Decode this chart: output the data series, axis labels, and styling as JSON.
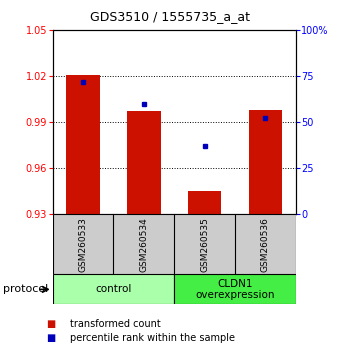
{
  "title": "GDS3510 / 1555735_a_at",
  "samples": [
    "GSM260533",
    "GSM260534",
    "GSM260535",
    "GSM260536"
  ],
  "red_values": [
    1.021,
    0.997,
    0.945,
    0.998
  ],
  "blue_values": [
    72,
    60,
    37,
    52
  ],
  "baseline": 0.93,
  "ylim_left": [
    0.93,
    1.05
  ],
  "ylim_right": [
    0,
    100
  ],
  "yticks_left": [
    0.93,
    0.96,
    0.99,
    1.02,
    1.05
  ],
  "yticks_right": [
    0,
    25,
    50,
    75,
    100
  ],
  "group_defs": [
    {
      "indices": [
        0,
        1
      ],
      "label": "control",
      "color": "#aaffaa"
    },
    {
      "indices": [
        2,
        3
      ],
      "label": "CLDN1\noverexpression",
      "color": "#44ee44"
    }
  ],
  "protocol_label": "protocol",
  "bar_color": "#CC1100",
  "dot_color": "#0000BB",
  "bar_width": 0.55,
  "sample_box_color": "#CCCCCC",
  "legend_red": "transformed count",
  "legend_blue": "percentile rank within the sample"
}
